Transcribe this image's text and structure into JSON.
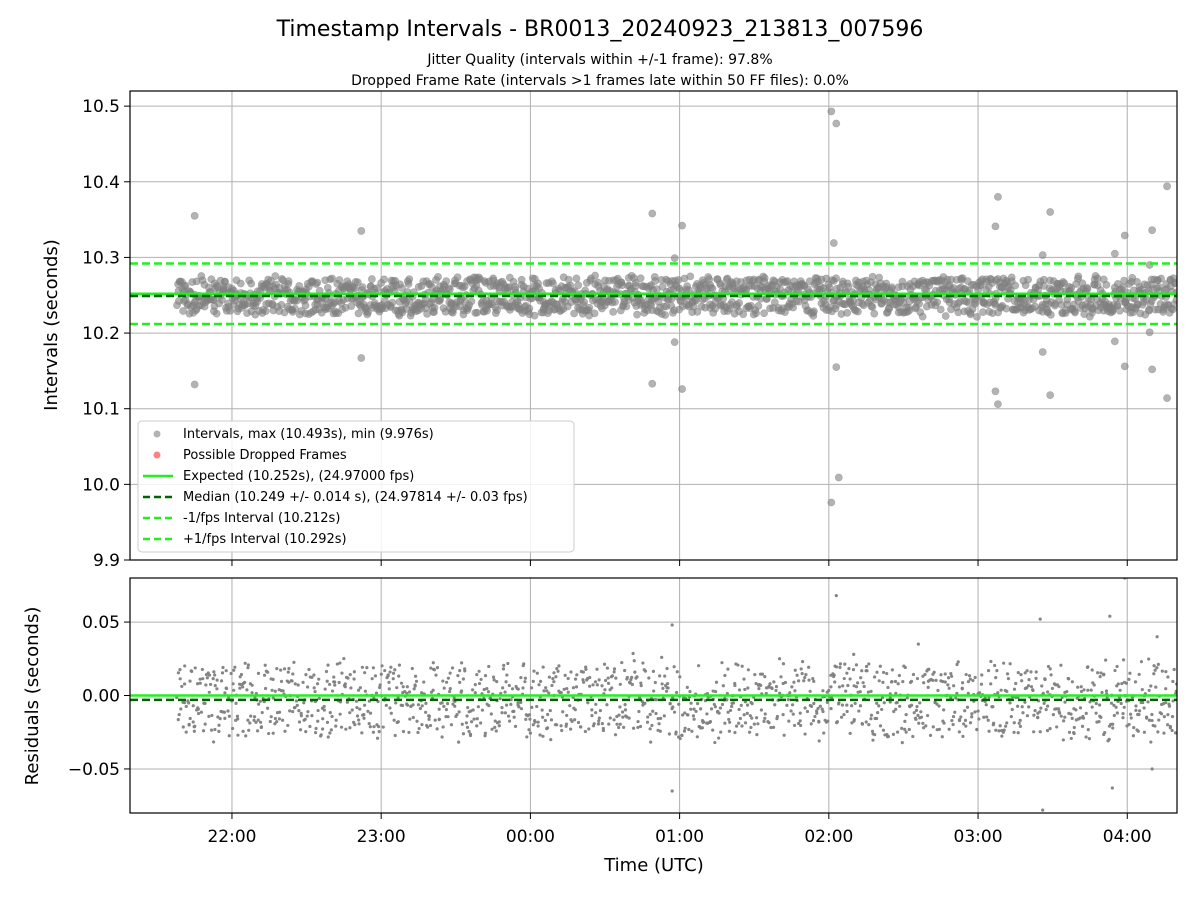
{
  "title": "Timestamp Intervals - BR0013_20240923_213813_007596",
  "subtitle_lines": [
    "Jitter Quality (intervals within +/-1 frame): 97.8%",
    "Dropped Frame Rate (intervals >1 frames late within 50 FF files): 0.0%"
  ],
  "colors": {
    "points": "#808080",
    "dropped": "#ff4d4d",
    "expected": "#22ee22",
    "median": "#006400",
    "bounds": "#22ee22",
    "grid": "#b0b0b0"
  },
  "chart_data": [
    {
      "type": "scatter",
      "name": "intervals",
      "xlabel": "",
      "ylabel": "Intervals (seconds)",
      "ylim": [
        9.9,
        10.52
      ],
      "xlim": [
        "21:19",
        "04:20"
      ],
      "yticks": [
        "9.9",
        "10.0",
        "10.1",
        "10.2",
        "10.3",
        "10.4",
        "10.5"
      ],
      "grid": true,
      "legend_position": "lower-left",
      "legend": [
        "Intervals, max (10.493s), min (9.976s)",
        "Possible Dropped Frames",
        "Expected (10.252s), (24.97000 fps)",
        "Median (10.249 +/- 0.014 s), (24.97814 +/- 0.03 fps)",
        "-1/fps Interval (10.212s)",
        "+1/fps Interval (10.292s)"
      ],
      "reference_lines": {
        "expected": 10.252,
        "median": 10.249,
        "minus_one_frame": 10.212,
        "plus_one_frame": 10.292
      },
      "series": [
        {
          "name": "Intervals, max (10.493s), min (9.976s)",
          "band": {
            "center": 10.249,
            "spread": 0.022
          },
          "x_range": [
            "21:38",
            "04:20"
          ]
        },
        {
          "name": "outliers",
          "points": [
            [
              "21:45",
              10.355
            ],
            [
              "21:45",
              10.132
            ],
            [
              "22:52",
              10.335
            ],
            [
              "22:52",
              10.167
            ],
            [
              "00:49",
              10.358
            ],
            [
              "00:49",
              10.133
            ],
            [
              "00:58",
              10.299
            ],
            [
              "00:58",
              10.188
            ],
            [
              "01:01",
              10.342
            ],
            [
              "01:01",
              10.126
            ],
            [
              "02:01",
              10.493
            ],
            [
              "02:03",
              10.477
            ],
            [
              "02:02",
              10.319
            ],
            [
              "02:03",
              10.155
            ],
            [
              "02:01",
              9.976
            ],
            [
              "02:04",
              10.009
            ],
            [
              "03:07",
              10.341
            ],
            [
              "03:08",
              10.38
            ],
            [
              "03:07",
              10.123
            ],
            [
              "03:08",
              10.106
            ],
            [
              "03:26",
              10.303
            ],
            [
              "03:26",
              10.175
            ],
            [
              "03:29",
              10.36
            ],
            [
              "03:29",
              10.118
            ],
            [
              "03:55",
              10.305
            ],
            [
              "03:55",
              10.189
            ],
            [
              "03:59",
              10.329
            ],
            [
              "03:59",
              10.156
            ],
            [
              "04:10",
              10.336
            ],
            [
              "04:10",
              10.152
            ],
            [
              "04:16",
              10.394
            ],
            [
              "04:16",
              10.114
            ],
            [
              "04:09",
              10.29
            ],
            [
              "04:09",
              10.201
            ]
          ]
        }
      ]
    },
    {
      "type": "scatter",
      "name": "residuals",
      "xlabel": "Time (UTC)",
      "ylabel": "Residuals (seconds)",
      "ylim": [
        -0.08,
        0.08
      ],
      "yticks": [
        "−0.05",
        "0.00",
        "0.05"
      ],
      "xticks": [
        "22:00",
        "23:00",
        "00:00",
        "01:00",
        "02:00",
        "03:00",
        "04:00"
      ],
      "grid": true,
      "reference_lines": {
        "expected": 0.0,
        "median": -0.003
      },
      "series": [
        {
          "name": "residuals",
          "band": {
            "center": -0.003,
            "spread": 0.022
          },
          "x_range": [
            "21:38",
            "04:20"
          ]
        },
        {
          "name": "outliers",
          "points": [
            [
              "00:57",
              0.048
            ],
            [
              "00:57",
              -0.065
            ],
            [
              "02:03",
              0.068
            ],
            [
              "03:25",
              0.052
            ],
            [
              "03:26",
              -0.078
            ],
            [
              "03:53",
              0.054
            ],
            [
              "03:54",
              -0.063
            ],
            [
              "03:59",
              0.08
            ],
            [
              "04:10",
              -0.05
            ],
            [
              "02:36",
              0.035
            ],
            [
              "02:10",
              0.028
            ],
            [
              "04:12",
              0.04
            ]
          ]
        }
      ]
    }
  ]
}
